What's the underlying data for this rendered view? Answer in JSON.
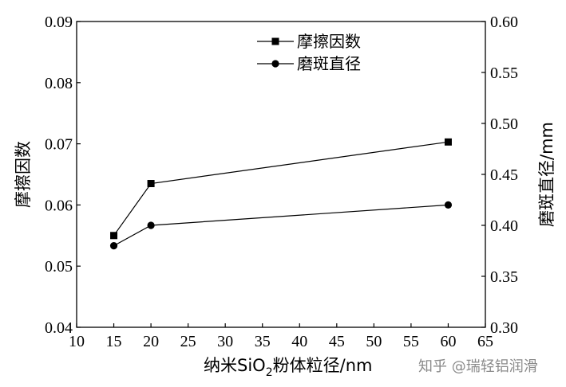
{
  "chart_data": {
    "type": "line",
    "x": [
      15,
      20,
      60
    ],
    "x_ticks": [
      "10",
      "15",
      "20",
      "25",
      "30",
      "35",
      "40",
      "45",
      "50",
      "55",
      "60",
      "65"
    ],
    "xlim": [
      10,
      65
    ],
    "xlabel_prefix": "纳米SiO",
    "xlabel_sub": "2",
    "xlabel_suffix": "粉体粒径/nm",
    "ylabel_left": "摩擦因数",
    "ylabel_right": "磨斑直径/mm",
    "ylim_left": [
      0.04,
      0.09
    ],
    "ylim_right": [
      0.3,
      0.6
    ],
    "y_ticks_left": [
      "0.04",
      "0.05",
      "0.06",
      "0.07",
      "0.08",
      "0.09"
    ],
    "y_ticks_right": [
      "0.30",
      "0.35",
      "0.40",
      "0.45",
      "0.50",
      "0.55",
      "0.60"
    ],
    "series": [
      {
        "name": "摩擦因数",
        "axis": "left",
        "marker": "square",
        "values": [
          0.055,
          0.0635,
          0.0703
        ]
      },
      {
        "name": "磨斑直径",
        "axis": "right",
        "marker": "circle",
        "values": [
          0.38,
          0.4,
          0.42
        ]
      }
    ],
    "legend_position": "top-right",
    "grid": false
  },
  "watermark": "知乎 @瑞轻铝润滑"
}
